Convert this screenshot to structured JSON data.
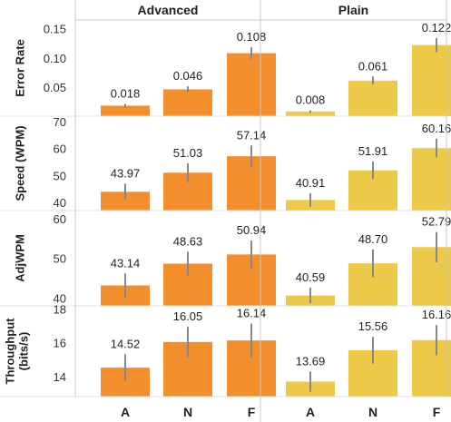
{
  "colors": {
    "advanced": "#f28e2b",
    "plain": "#edc948",
    "error_bar": "#888888",
    "grid_line": "#e0e0e0",
    "panel_border": "#c8c8c8"
  },
  "chart_data": {
    "type": "bar",
    "layout": "small-multiples",
    "columns": [
      "Advanced",
      "Plain"
    ],
    "categories": [
      "A",
      "N",
      "F"
    ],
    "grid": false,
    "panels": [
      {
        "ylabel": [
          "Error Rate"
        ],
        "ylim": [
          0,
          0.165
        ],
        "yticks": [
          0.05,
          0.1,
          0.15
        ],
        "ytick_labels": [
          "0.05",
          "0.10",
          "0.15"
        ],
        "series": [
          {
            "column": "Advanced",
            "values": [
              0.018,
              0.046,
              0.108
            ],
            "labels": [
              "0.018",
              "0.046",
              "0.108"
            ],
            "err": [
              0.003,
              0.005,
              0.01
            ]
          },
          {
            "column": "Plain",
            "values": [
              0.008,
              0.061,
              0.122
            ],
            "labels": [
              "0.008",
              "0.061",
              "0.122"
            ],
            "err": [
              0.002,
              0.007,
              0.012
            ]
          }
        ]
      },
      {
        "ylabel": [
          "Speed (WPM)"
        ],
        "ylim": [
          37,
          72
        ],
        "yticks": [
          40,
          50,
          60,
          70
        ],
        "ytick_labels": [
          "40",
          "50",
          "60",
          "70"
        ],
        "series": [
          {
            "column": "Advanced",
            "values": [
              43.97,
              51.03,
              57.14
            ],
            "labels": [
              "43.97",
              "51.03",
              "57.14"
            ],
            "err": [
              3.0,
              3.5,
              4.0
            ]
          },
          {
            "column": "Plain",
            "values": [
              40.91,
              51.91,
              60.16
            ],
            "labels": [
              "40.91",
              "51.91",
              "60.16"
            ],
            "err": [
              2.5,
              3.3,
              3.5
            ]
          }
        ]
      },
      {
        "ylabel": [
          "AdjWPM"
        ],
        "ylim": [
          38,
          62
        ],
        "yticks": [
          40,
          50,
          60
        ],
        "ytick_labels": [
          "40",
          "50",
          "60"
        ],
        "series": [
          {
            "column": "Advanced",
            "values": [
              43.14,
              48.63,
              50.94
            ],
            "labels": [
              "43.14",
              "48.63",
              "50.94"
            ],
            "err": [
              3.0,
              3.0,
              3.5
            ]
          },
          {
            "column": "Plain",
            "values": [
              40.59,
              48.7,
              52.79
            ],
            "labels": [
              "40.59",
              "48.70",
              "52.79"
            ],
            "err": [
              2.0,
              3.5,
              3.8
            ]
          }
        ]
      },
      {
        "ylabel": [
          "Throughput",
          "(bits/s)"
        ],
        "ylim": [
          12.8,
          18.2
        ],
        "yticks": [
          14,
          16,
          18
        ],
        "ytick_labels": [
          "14",
          "16",
          "18"
        ],
        "series": [
          {
            "column": "Advanced",
            "values": [
              14.52,
              16.05,
              16.14
            ],
            "labels": [
              "14.52",
              "16.05",
              "16.14"
            ],
            "err": [
              0.8,
              0.9,
              1.0
            ]
          },
          {
            "column": "Plain",
            "values": [
              13.69,
              15.56,
              16.16
            ],
            "labels": [
              "13.69",
              "15.56",
              "16.16"
            ],
            "err": [
              0.6,
              0.8,
              0.9
            ]
          }
        ]
      }
    ]
  }
}
